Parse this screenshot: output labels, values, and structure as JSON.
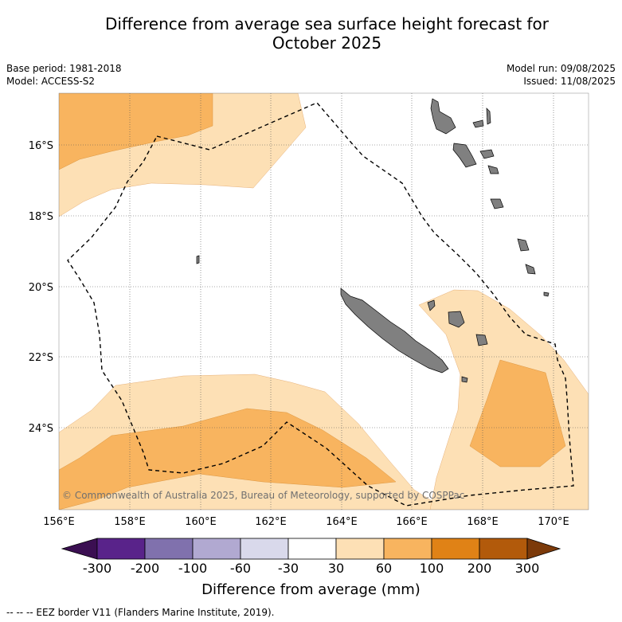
{
  "title_line1": "Difference from average sea surface height forecast for",
  "title_line2": "October 2025",
  "left_meta": {
    "base_period": "Base period: 1981-2018",
    "model": "Model: ACCESS-S2"
  },
  "right_meta": {
    "model_run": "Model run: 09/08/2025",
    "issued": "Issued: 11/08/2025"
  },
  "copyright": "© Commonwealth of Australia 2025, Bureau of Meteorology, supported by COSPPac",
  "lon_ticks": [
    "156°E",
    "158°E",
    "160°E",
    "162°E",
    "164°E",
    "166°E",
    "168°E",
    "170°E"
  ],
  "lat_ticks": [
    "16°S",
    "18°S",
    "20°S",
    "22°S",
    "24°S"
  ],
  "colorbar": {
    "title": "Difference from average (mm)",
    "labels": [
      "-300",
      "-200",
      "-100",
      "-60",
      "-30",
      "30",
      "60",
      "100",
      "200",
      "300"
    ],
    "colors": [
      "#3b0f52",
      "#59238a",
      "#8071ad",
      "#b1a9d1",
      "#d9d9eb",
      "#ffffff",
      "#fde0b5",
      "#f8b45f",
      "#e08216",
      "#b25a0b",
      "#7c3a0a"
    ]
  },
  "footer": "--  --  -- EEZ border V11 (Flanders Marine Institute, 2019).",
  "colors": {
    "land": "#808080",
    "anomaly_30_60": "#fde0b5",
    "anomaly_60_100": "#f8b45f"
  }
}
